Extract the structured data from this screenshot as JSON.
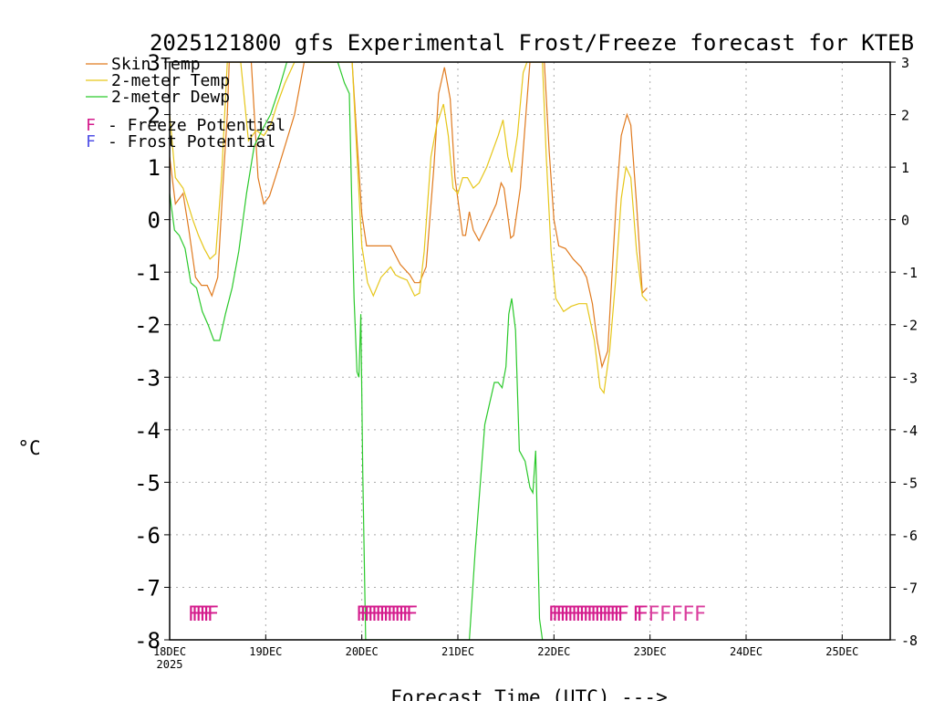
{
  "chart_data": {
    "type": "line",
    "title": "2025121800 gfs Experimental Frost/Freeze forecast for KTEB",
    "xlabel": "Forecast Time (UTC) --->",
    "ylabel": "°C",
    "ylim": [
      -8,
      3
    ],
    "xlim": [
      0,
      7.5
    ],
    "grid": true,
    "x_unit": "days since 18DEC 00Z",
    "y_ticks": [
      "3",
      "2",
      "1",
      "0",
      "-1",
      "-2",
      "-3",
      "-4",
      "-5",
      "-6",
      "-7",
      "-8"
    ],
    "y_tick_values": [
      3,
      2,
      1,
      0,
      -1,
      -2,
      -3,
      -4,
      -5,
      -6,
      -7,
      -8
    ],
    "x_ticks": [
      {
        "x": 0,
        "label": "18DEC",
        "sublabel": "2025"
      },
      {
        "x": 1,
        "label": "19DEC"
      },
      {
        "x": 2,
        "label": "20DEC"
      },
      {
        "x": 3,
        "label": "21DEC"
      },
      {
        "x": 4,
        "label": "22DEC"
      },
      {
        "x": 5,
        "label": "23DEC"
      },
      {
        "x": 6,
        "label": "24DEC"
      },
      {
        "x": 7,
        "label": "25DEC"
      }
    ],
    "legend": {
      "position": "top-left",
      "series": [
        {
          "label": "Skin Temp",
          "color": "#e07a1e"
        },
        {
          "label": "2-meter Temp",
          "color": "#e6c619"
        },
        {
          "label": "2-meter Dewp",
          "color": "#2bc92b"
        }
      ],
      "markers": [
        {
          "symbol": "F",
          "text": "- Freeze Potential",
          "color": "#d41b8c"
        },
        {
          "symbol": "F",
          "text": "- Frost Potential",
          "color": "#5050e6"
        }
      ]
    },
    "series": [
      {
        "name": "Skin Temp",
        "color": "#e07a1e",
        "points": [
          [
            0,
            1.2
          ],
          [
            0.06,
            0.3
          ],
          [
            0.14,
            0.5
          ],
          [
            0.2,
            -0.2
          ],
          [
            0.27,
            -1.1
          ],
          [
            0.33,
            -1.25
          ],
          [
            0.39,
            -1.25
          ],
          [
            0.44,
            -1.45
          ],
          [
            0.5,
            -1.1
          ],
          [
            0.55,
            0.5
          ],
          [
            0.6,
            2.0
          ],
          [
            0.62,
            3.0
          ],
          [
            0.85,
            3.0
          ],
          [
            0.92,
            0.8
          ],
          [
            0.98,
            0.3
          ],
          [
            1.04,
            0.45
          ],
          [
            1.1,
            0.8
          ],
          [
            1.2,
            1.4
          ],
          [
            1.3,
            2.0
          ],
          [
            1.4,
            3.0
          ],
          [
            1.9,
            3.0
          ],
          [
            1.95,
            1.5
          ],
          [
            2.0,
            0.1
          ],
          [
            2.05,
            -0.5
          ],
          [
            2.12,
            -0.5
          ],
          [
            2.3,
            -0.5
          ],
          [
            2.4,
            -0.85
          ],
          [
            2.5,
            -1.05
          ],
          [
            2.55,
            -1.2
          ],
          [
            2.6,
            -1.2
          ],
          [
            2.67,
            -0.9
          ],
          [
            2.75,
            1.0
          ],
          [
            2.8,
            2.4
          ],
          [
            2.86,
            2.9
          ],
          [
            2.92,
            2.3
          ],
          [
            2.97,
            0.8
          ],
          [
            3.05,
            -0.3
          ],
          [
            3.08,
            -0.3
          ],
          [
            3.12,
            0.15
          ],
          [
            3.16,
            -0.2
          ],
          [
            3.22,
            -0.4
          ],
          [
            3.3,
            -0.1
          ],
          [
            3.35,
            0.1
          ],
          [
            3.4,
            0.3
          ],
          [
            3.45,
            0.7
          ],
          [
            3.48,
            0.6
          ],
          [
            3.55,
            -0.35
          ],
          [
            3.58,
            -0.3
          ],
          [
            3.65,
            0.6
          ],
          [
            3.7,
            1.8
          ],
          [
            3.75,
            3.0
          ],
          [
            3.9,
            3.0
          ],
          [
            3.95,
            1.3
          ],
          [
            4.0,
            0.0
          ],
          [
            4.05,
            -0.5
          ],
          [
            4.12,
            -0.55
          ],
          [
            4.2,
            -0.75
          ],
          [
            4.28,
            -0.9
          ],
          [
            4.34,
            -1.1
          ],
          [
            4.4,
            -1.6
          ],
          [
            4.45,
            -2.3
          ],
          [
            4.5,
            -2.8
          ],
          [
            4.56,
            -2.5
          ],
          [
            4.6,
            -1.2
          ],
          [
            4.65,
            0.4
          ],
          [
            4.7,
            1.6
          ],
          [
            4.76,
            2.0
          ],
          [
            4.8,
            1.8
          ],
          [
            4.86,
            0.3
          ],
          [
            4.92,
            -1.4
          ],
          [
            4.97,
            -1.3
          ]
        ]
      },
      {
        "name": "2-meter Temp",
        "color": "#e6c619",
        "points": [
          [
            0,
            2.0
          ],
          [
            0.06,
            0.8
          ],
          [
            0.14,
            0.6
          ],
          [
            0.24,
            0.0
          ],
          [
            0.3,
            -0.3
          ],
          [
            0.36,
            -0.55
          ],
          [
            0.42,
            -0.75
          ],
          [
            0.48,
            -0.65
          ],
          [
            0.54,
            0.8
          ],
          [
            0.6,
            3.0
          ],
          [
            0.74,
            3.0
          ],
          [
            0.82,
            1.5
          ],
          [
            0.9,
            1.7
          ],
          [
            0.98,
            1.6
          ],
          [
            1.05,
            1.8
          ],
          [
            1.12,
            2.2
          ],
          [
            1.2,
            2.6
          ],
          [
            1.3,
            3.0
          ],
          [
            1.9,
            3.0
          ],
          [
            1.95,
            1.2
          ],
          [
            2.0,
            -0.5
          ],
          [
            2.06,
            -1.2
          ],
          [
            2.12,
            -1.45
          ],
          [
            2.2,
            -1.1
          ],
          [
            2.3,
            -0.9
          ],
          [
            2.35,
            -1.05
          ],
          [
            2.4,
            -1.1
          ],
          [
            2.47,
            -1.15
          ],
          [
            2.55,
            -1.45
          ],
          [
            2.6,
            -1.4
          ],
          [
            2.65,
            -0.6
          ],
          [
            2.72,
            1.2
          ],
          [
            2.78,
            1.8
          ],
          [
            2.85,
            2.2
          ],
          [
            2.9,
            1.6
          ],
          [
            2.95,
            0.6
          ],
          [
            3.0,
            0.5
          ],
          [
            3.05,
            0.8
          ],
          [
            3.1,
            0.8
          ],
          [
            3.16,
            0.6
          ],
          [
            3.22,
            0.7
          ],
          [
            3.3,
            1.0
          ],
          [
            3.36,
            1.3
          ],
          [
            3.42,
            1.6
          ],
          [
            3.47,
            1.9
          ],
          [
            3.52,
            1.2
          ],
          [
            3.56,
            0.9
          ],
          [
            3.62,
            1.6
          ],
          [
            3.68,
            2.8
          ],
          [
            3.72,
            3.0
          ],
          [
            3.88,
            3.0
          ],
          [
            3.92,
            1.2
          ],
          [
            3.97,
            -0.6
          ],
          [
            4.02,
            -1.5
          ],
          [
            4.1,
            -1.75
          ],
          [
            4.18,
            -1.65
          ],
          [
            4.26,
            -1.6
          ],
          [
            4.34,
            -1.6
          ],
          [
            4.42,
            -2.3
          ],
          [
            4.48,
            -3.2
          ],
          [
            4.52,
            -3.3
          ],
          [
            4.58,
            -2.5
          ],
          [
            4.64,
            -1.2
          ],
          [
            4.7,
            0.4
          ],
          [
            4.75,
            1.0
          ],
          [
            4.8,
            0.8
          ],
          [
            4.86,
            -0.6
          ],
          [
            4.92,
            -1.45
          ],
          [
            4.97,
            -1.55
          ]
        ]
      },
      {
        "name": "2-meter Dewp",
        "color": "#2bc92b",
        "points": [
          [
            0,
            0.5
          ],
          [
            0.05,
            -0.2
          ],
          [
            0.1,
            -0.3
          ],
          [
            0.16,
            -0.55
          ],
          [
            0.22,
            -1.2
          ],
          [
            0.28,
            -1.3
          ],
          [
            0.34,
            -1.75
          ],
          [
            0.4,
            -2.0
          ],
          [
            0.46,
            -2.3
          ],
          [
            0.52,
            -2.3
          ],
          [
            0.58,
            -1.8
          ],
          [
            0.65,
            -1.3
          ],
          [
            0.72,
            -0.6
          ],
          [
            0.8,
            0.5
          ],
          [
            0.88,
            1.4
          ],
          [
            0.96,
            1.7
          ],
          [
            1.05,
            2.0
          ],
          [
            1.14,
            2.5
          ],
          [
            1.22,
            3.0
          ],
          [
            1.75,
            3.0
          ],
          [
            1.82,
            2.6
          ],
          [
            1.87,
            2.4
          ],
          [
            1.9,
            0.0
          ],
          [
            1.92,
            -1.5
          ],
          [
            1.95,
            -2.9
          ],
          [
            1.97,
            -3.0
          ],
          [
            1.99,
            -1.8
          ],
          [
            2.01,
            -4.8
          ],
          [
            2.04,
            -8.0
          ],
          [
            3.12,
            -8.0
          ],
          [
            3.18,
            -6.3
          ],
          [
            3.28,
            -3.9
          ],
          [
            3.38,
            -3.1
          ],
          [
            3.42,
            -3.1
          ],
          [
            3.46,
            -3.2
          ],
          [
            3.5,
            -2.8
          ],
          [
            3.53,
            -1.8
          ],
          [
            3.56,
            -1.5
          ],
          [
            3.6,
            -2.1
          ],
          [
            3.64,
            -4.4
          ],
          [
            3.7,
            -4.6
          ],
          [
            3.75,
            -5.1
          ],
          [
            3.78,
            -5.2
          ],
          [
            3.81,
            -4.4
          ],
          [
            3.85,
            -7.6
          ],
          [
            3.88,
            -8.0
          ]
        ]
      }
    ],
    "frost_freeze_markers": {
      "freeze": {
        "label": "F",
        "color": "#d41b8c",
        "y": -7.5,
        "x": [
          0.25,
          0.29,
          0.33,
          0.37,
          0.41,
          0.45,
          2.0,
          2.04,
          2.08,
          2.12,
          2.16,
          2.2,
          2.24,
          2.28,
          2.32,
          2.36,
          2.4,
          2.44,
          2.48,
          2.52,
          4.0,
          4.04,
          4.08,
          4.12,
          4.16,
          4.2,
          4.24,
          4.28,
          4.32,
          4.36,
          4.4,
          4.44,
          4.48,
          4.52,
          4.56,
          4.6,
          4.64,
          4.68,
          4.72,
          4.88,
          4.92
        ]
      },
      "frost": {
        "label": "F",
        "color": "#5050e6",
        "y": -7.5,
        "x": []
      },
      "faint_freeze": {
        "label": "F",
        "color": "#d41b8c",
        "y": -7.5,
        "x": [
          5.04,
          5.16,
          5.28,
          5.4,
          5.52
        ]
      }
    }
  }
}
